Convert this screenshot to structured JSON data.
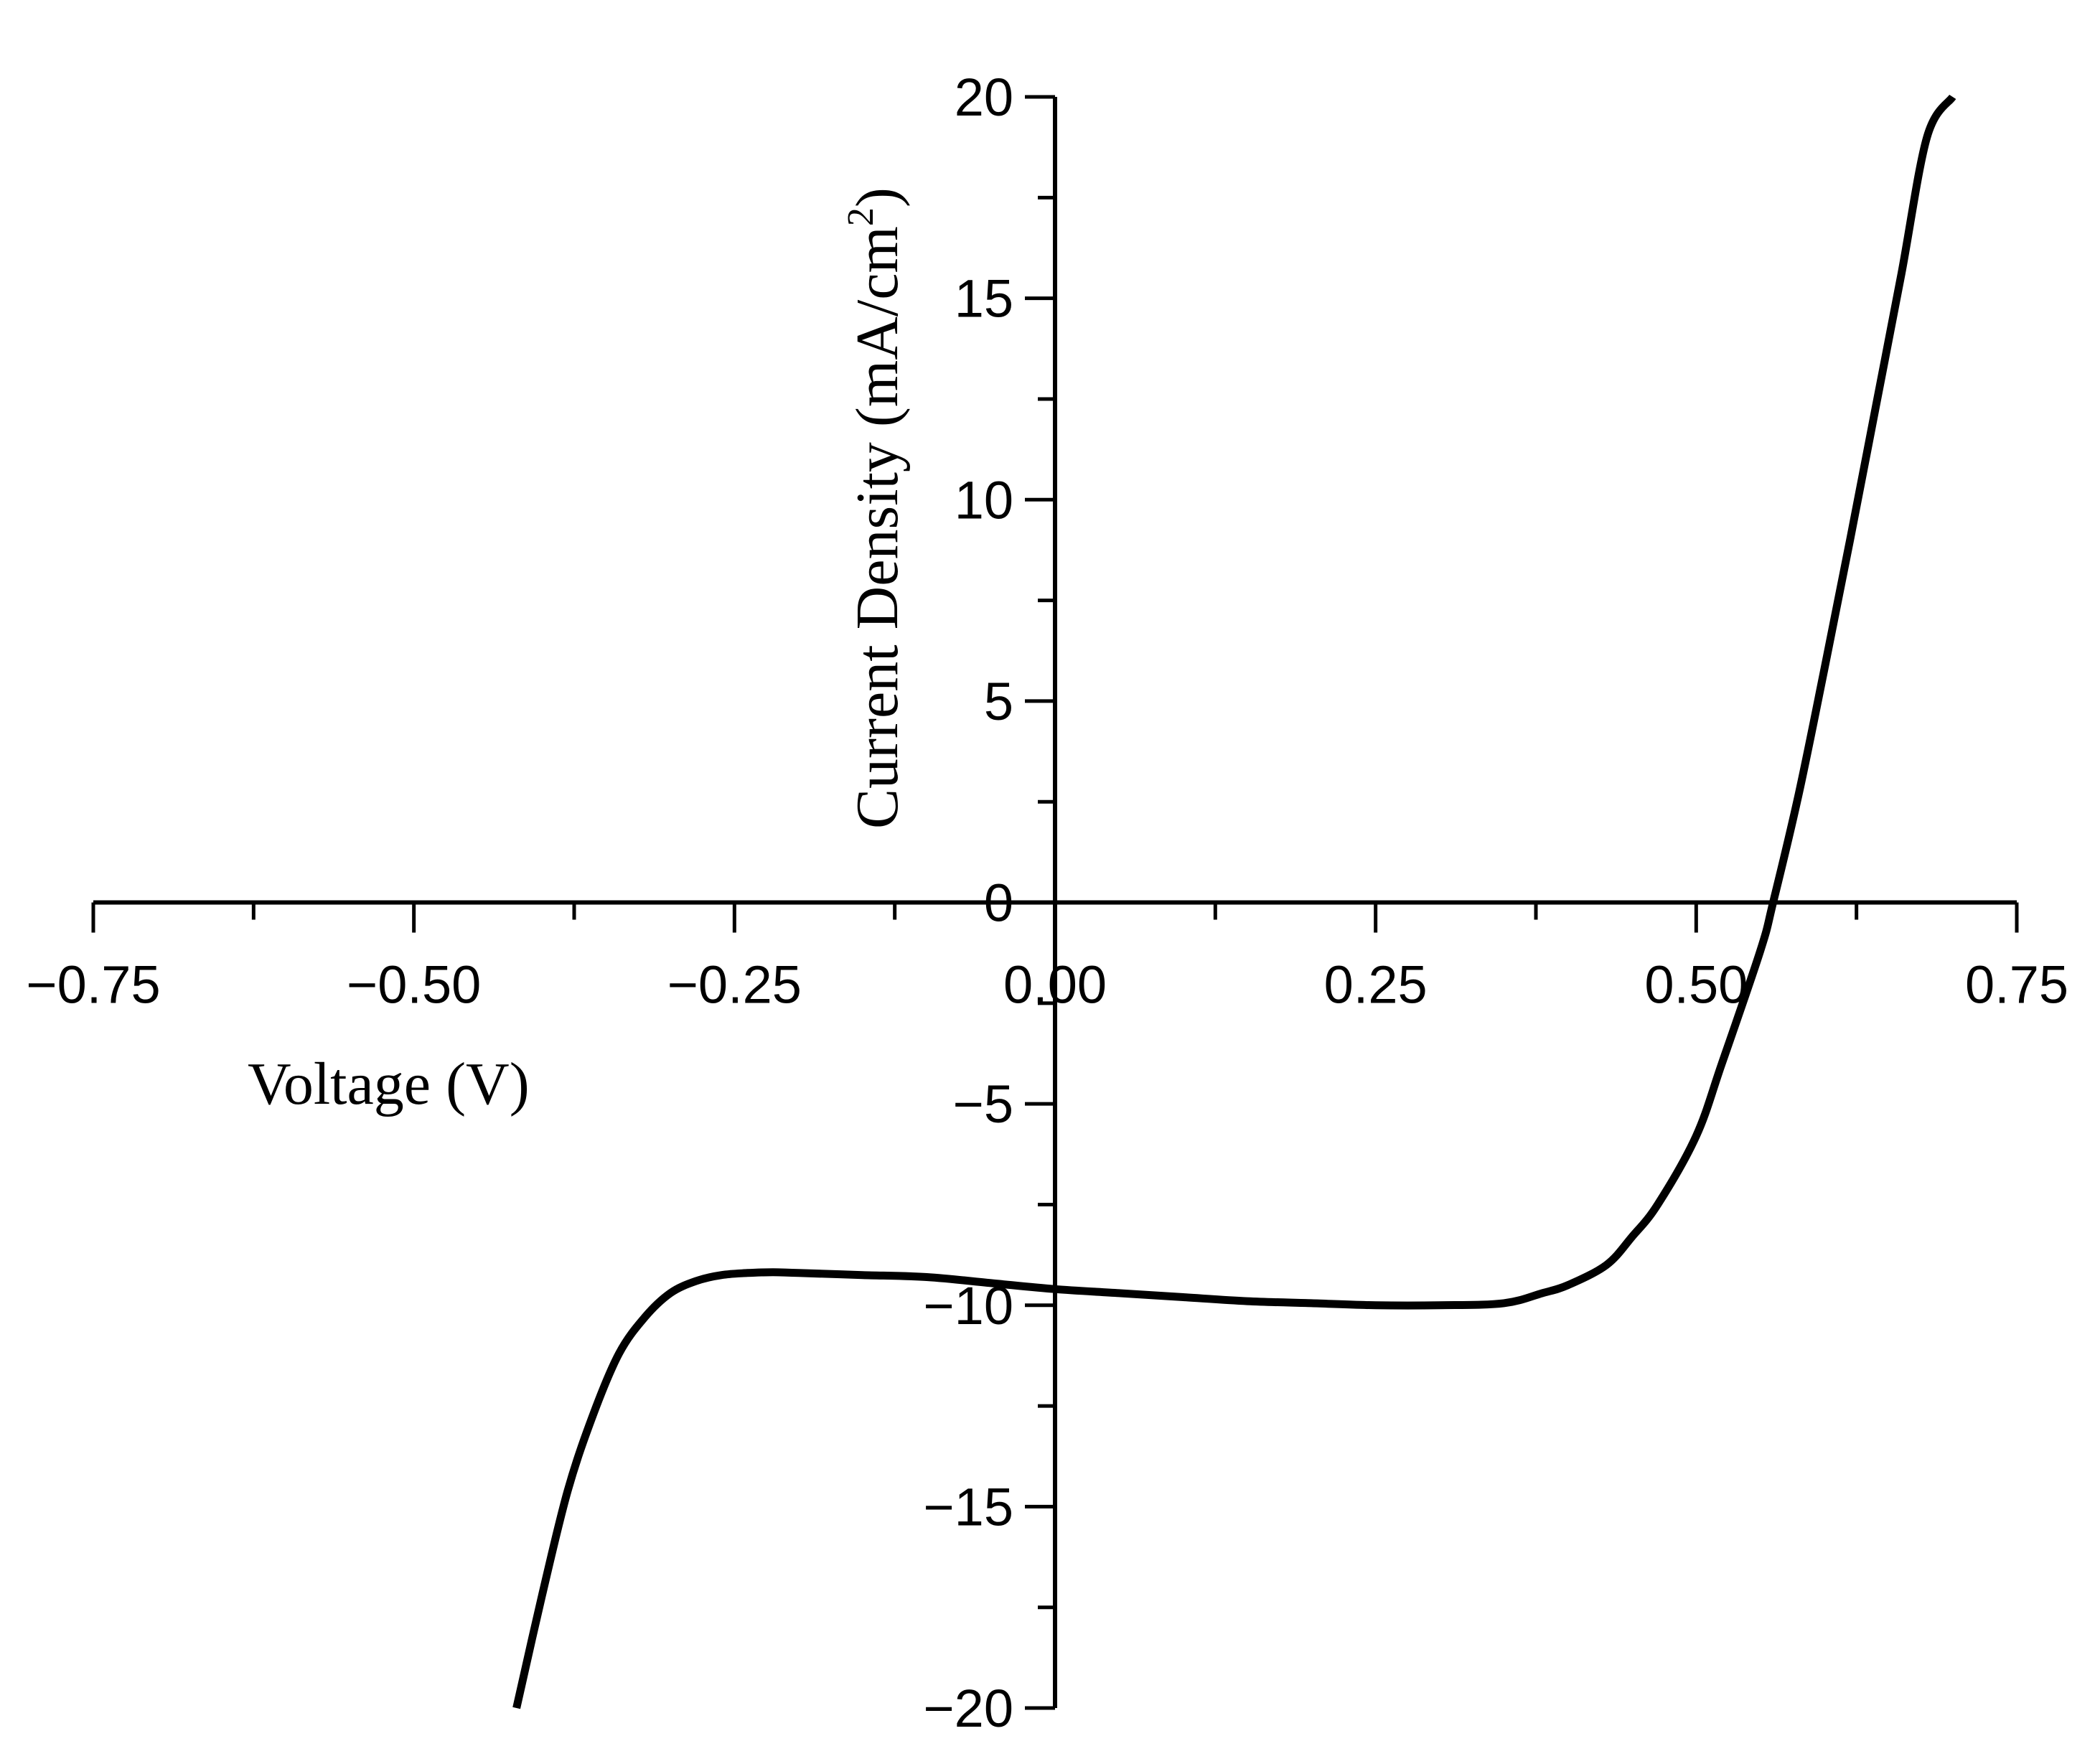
{
  "chart_data": {
    "type": "line",
    "title": "",
    "xlabel": "Voltage (V)",
    "ylabel": "Current Density (mA/cm",
    "ylabel_superscript": "2",
    "ylabel_close": ")",
    "xlim": [
      -0.75,
      0.75
    ],
    "ylim": [
      -20,
      20
    ],
    "x_ticks": [
      -0.75,
      -0.5,
      -0.25,
      0.0,
      0.25,
      0.5,
      0.75
    ],
    "x_tick_labels": [
      "−0.75",
      "−0.50",
      "−0.25",
      "0.00",
      "0.25",
      "0.50",
      "0.75"
    ],
    "y_ticks": [
      20,
      15,
      10,
      5,
      0,
      -5,
      -10,
      -15,
      -20
    ],
    "y_tick_labels": [
      "20",
      "15",
      "10",
      "5",
      "0",
      "−5",
      "−10",
      "−15",
      "−20"
    ],
    "grid": false,
    "legend": "none",
    "line_color": "#000000",
    "series": [
      {
        "x": [
          -0.42,
          -0.4,
          -0.38,
          -0.36,
          -0.34,
          -0.32,
          -0.3,
          -0.28,
          -0.26,
          -0.24,
          -0.22,
          -0.2,
          -0.15,
          -0.1,
          -0.05,
          0.0,
          0.05,
          0.1,
          0.15,
          0.2,
          0.25,
          0.3,
          0.35,
          0.38,
          0.4,
          0.43,
          0.45,
          0.47,
          0.5,
          0.52,
          0.55,
          0.56,
          0.58,
          0.6,
          0.62,
          0.64,
          0.66,
          0.68,
          0.7
        ],
        "y": [
          -20.0,
          -17.2,
          -14.6,
          -12.7,
          -11.2,
          -10.3,
          -9.7,
          -9.4,
          -9.25,
          -9.2,
          -9.18,
          -9.2,
          -9.25,
          -9.3,
          -9.45,
          -9.6,
          -9.7,
          -9.8,
          -9.9,
          -9.95,
          -10.0,
          -10.0,
          -9.95,
          -9.7,
          -9.5,
          -9.0,
          -8.3,
          -7.5,
          -5.8,
          -4.0,
          -1.2,
          0.0,
          2.7,
          5.8,
          9.0,
          12.3,
          15.6,
          19.0,
          20.0
        ]
      }
    ]
  }
}
